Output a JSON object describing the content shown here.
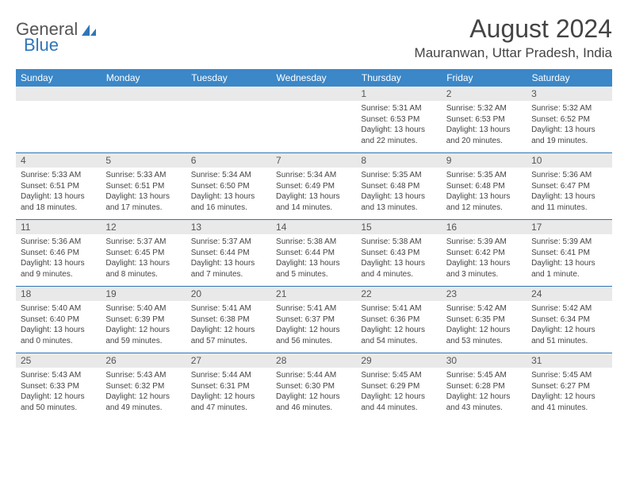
{
  "logo": {
    "text1": "General",
    "text2": "Blue"
  },
  "title": "August 2024",
  "location": "Mauranwan, Uttar Pradesh, India",
  "dayHeaders": [
    "Sunday",
    "Monday",
    "Tuesday",
    "Wednesday",
    "Thursday",
    "Friday",
    "Saturday"
  ],
  "colors": {
    "headerBg": "#3b87c8",
    "accent": "#2f76b8",
    "dayStripe": "#e9e9e9",
    "text": "#444444"
  },
  "weeks": [
    [
      null,
      null,
      null,
      null,
      {
        "n": "1",
        "sr": "5:31 AM",
        "ss": "6:53 PM",
        "dl": "13 hours and 22 minutes."
      },
      {
        "n": "2",
        "sr": "5:32 AM",
        "ss": "6:53 PM",
        "dl": "13 hours and 20 minutes."
      },
      {
        "n": "3",
        "sr": "5:32 AM",
        "ss": "6:52 PM",
        "dl": "13 hours and 19 minutes."
      }
    ],
    [
      {
        "n": "4",
        "sr": "5:33 AM",
        "ss": "6:51 PM",
        "dl": "13 hours and 18 minutes."
      },
      {
        "n": "5",
        "sr": "5:33 AM",
        "ss": "6:51 PM",
        "dl": "13 hours and 17 minutes."
      },
      {
        "n": "6",
        "sr": "5:34 AM",
        "ss": "6:50 PM",
        "dl": "13 hours and 16 minutes."
      },
      {
        "n": "7",
        "sr": "5:34 AM",
        "ss": "6:49 PM",
        "dl": "13 hours and 14 minutes."
      },
      {
        "n": "8",
        "sr": "5:35 AM",
        "ss": "6:48 PM",
        "dl": "13 hours and 13 minutes."
      },
      {
        "n": "9",
        "sr": "5:35 AM",
        "ss": "6:48 PM",
        "dl": "13 hours and 12 minutes."
      },
      {
        "n": "10",
        "sr": "5:36 AM",
        "ss": "6:47 PM",
        "dl": "13 hours and 11 minutes."
      }
    ],
    [
      {
        "n": "11",
        "sr": "5:36 AM",
        "ss": "6:46 PM",
        "dl": "13 hours and 9 minutes."
      },
      {
        "n": "12",
        "sr": "5:37 AM",
        "ss": "6:45 PM",
        "dl": "13 hours and 8 minutes."
      },
      {
        "n": "13",
        "sr": "5:37 AM",
        "ss": "6:44 PM",
        "dl": "13 hours and 7 minutes."
      },
      {
        "n": "14",
        "sr": "5:38 AM",
        "ss": "6:44 PM",
        "dl": "13 hours and 5 minutes."
      },
      {
        "n": "15",
        "sr": "5:38 AM",
        "ss": "6:43 PM",
        "dl": "13 hours and 4 minutes."
      },
      {
        "n": "16",
        "sr": "5:39 AM",
        "ss": "6:42 PM",
        "dl": "13 hours and 3 minutes."
      },
      {
        "n": "17",
        "sr": "5:39 AM",
        "ss": "6:41 PM",
        "dl": "13 hours and 1 minute."
      }
    ],
    [
      {
        "n": "18",
        "sr": "5:40 AM",
        "ss": "6:40 PM",
        "dl": "13 hours and 0 minutes."
      },
      {
        "n": "19",
        "sr": "5:40 AM",
        "ss": "6:39 PM",
        "dl": "12 hours and 59 minutes."
      },
      {
        "n": "20",
        "sr": "5:41 AM",
        "ss": "6:38 PM",
        "dl": "12 hours and 57 minutes."
      },
      {
        "n": "21",
        "sr": "5:41 AM",
        "ss": "6:37 PM",
        "dl": "12 hours and 56 minutes."
      },
      {
        "n": "22",
        "sr": "5:41 AM",
        "ss": "6:36 PM",
        "dl": "12 hours and 54 minutes."
      },
      {
        "n": "23",
        "sr": "5:42 AM",
        "ss": "6:35 PM",
        "dl": "12 hours and 53 minutes."
      },
      {
        "n": "24",
        "sr": "5:42 AM",
        "ss": "6:34 PM",
        "dl": "12 hours and 51 minutes."
      }
    ],
    [
      {
        "n": "25",
        "sr": "5:43 AM",
        "ss": "6:33 PM",
        "dl": "12 hours and 50 minutes."
      },
      {
        "n": "26",
        "sr": "5:43 AM",
        "ss": "6:32 PM",
        "dl": "12 hours and 49 minutes."
      },
      {
        "n": "27",
        "sr": "5:44 AM",
        "ss": "6:31 PM",
        "dl": "12 hours and 47 minutes."
      },
      {
        "n": "28",
        "sr": "5:44 AM",
        "ss": "6:30 PM",
        "dl": "12 hours and 46 minutes."
      },
      {
        "n": "29",
        "sr": "5:45 AM",
        "ss": "6:29 PM",
        "dl": "12 hours and 44 minutes."
      },
      {
        "n": "30",
        "sr": "5:45 AM",
        "ss": "6:28 PM",
        "dl": "12 hours and 43 minutes."
      },
      {
        "n": "31",
        "sr": "5:45 AM",
        "ss": "6:27 PM",
        "dl": "12 hours and 41 minutes."
      }
    ]
  ],
  "labels": {
    "sunrise": "Sunrise: ",
    "sunset": "Sunset: ",
    "daylight": "Daylight: "
  }
}
